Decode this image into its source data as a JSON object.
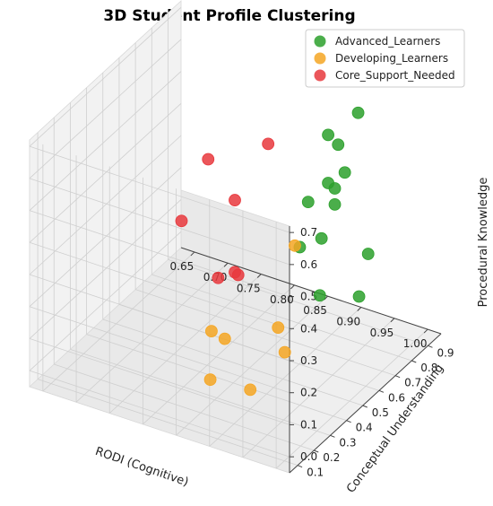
{
  "chart_data": {
    "type": "scatter",
    "title": "3D Student Profile Clustering",
    "xlabel": "RODI (Cognitive)",
    "ylabel": "Conceptual Understanding",
    "zlabel": "Procedural Knowledge",
    "xlim": [
      0.63,
      1.02
    ],
    "ylim": [
      0.05,
      0.98
    ],
    "zlim": [
      -0.05,
      0.72
    ],
    "xticks": [
      0.65,
      0.7,
      0.75,
      0.8,
      0.85,
      0.9,
      0.95,
      1.0
    ],
    "yticks": [
      0.1,
      0.2,
      0.3,
      0.4,
      0.5,
      0.6,
      0.7,
      0.8,
      0.9
    ],
    "zticks": [
      0.0,
      0.1,
      0.2,
      0.3,
      0.4,
      0.5,
      0.6,
      0.7
    ],
    "xtick_labels": [
      "0.65",
      "0.70",
      "0.75",
      "0.80",
      "0.85",
      "0.90",
      "0.95",
      "1.00"
    ],
    "ytick_labels": [
      "0.1",
      "0.2",
      "0.3",
      "0.4",
      "0.5",
      "0.6",
      "0.7",
      "0.8",
      "0.9"
    ],
    "ztick_labels": [
      "0.0",
      "0.1",
      "0.2",
      "0.3",
      "0.4",
      "0.5",
      "0.6",
      "0.7"
    ],
    "legend_position": "top-right",
    "grid": true,
    "series": [
      {
        "name": "Advanced_Learners",
        "color": "#2ca02c",
        "points": [
          {
            "x": 0.925,
            "y": 0.86,
            "z": 0.63
          },
          {
            "x": 0.88,
            "y": 0.86,
            "z": 0.53
          },
          {
            "x": 0.895,
            "y": 0.86,
            "z": 0.51
          },
          {
            "x": 0.905,
            "y": 0.86,
            "z": 0.43
          },
          {
            "x": 0.88,
            "y": 0.86,
            "z": 0.38
          },
          {
            "x": 0.89,
            "y": 0.86,
            "z": 0.37
          },
          {
            "x": 0.89,
            "y": 0.86,
            "z": 0.32
          },
          {
            "x": 0.945,
            "y": 0.42,
            "z": 0.43
          },
          {
            "x": 0.94,
            "y": 0.86,
            "z": 0.2
          },
          {
            "x": 0.87,
            "y": 0.86,
            "z": 0.2
          },
          {
            "x": 0.985,
            "y": 0.62,
            "z": 0.21
          },
          {
            "x": 0.85,
            "y": 0.86,
            "z": 0.3
          },
          {
            "x": 0.975,
            "y": 0.42,
            "z": 0.3
          }
        ]
      },
      {
        "name": "Developing_Learners",
        "color": "#f5a623",
        "points": [
          {
            "x": 0.83,
            "y": 0.86,
            "z": 0.15
          },
          {
            "x": 0.91,
            "y": 0.43,
            "z": 0.15
          },
          {
            "x": 0.92,
            "y": 0.43,
            "z": 0.08
          },
          {
            "x": 0.81,
            "y": 0.43,
            "z": 0.07
          },
          {
            "x": 0.83,
            "y": 0.43,
            "z": 0.06
          },
          {
            "x": 0.84,
            "y": 0.3,
            "z": 0.0
          },
          {
            "x": 0.9,
            "y": 0.3,
            "z": 0.01
          }
        ]
      },
      {
        "name": "Core_Support_Needed",
        "color": "#e8383d",
        "points": [
          {
            "x": 0.7,
            "y": 0.86,
            "z": 0.33
          },
          {
            "x": 0.74,
            "y": 0.86,
            "z": 0.23
          },
          {
            "x": 0.79,
            "y": 0.86,
            "z": 0.44
          },
          {
            "x": 0.66,
            "y": 0.86,
            "z": 0.11
          },
          {
            "x": 0.74,
            "y": 0.86,
            "z": 0.005
          },
          {
            "x": 0.745,
            "y": 0.86,
            "z": 0.0
          },
          {
            "x": 0.715,
            "y": 0.86,
            "z": -0.03
          }
        ]
      }
    ]
  }
}
